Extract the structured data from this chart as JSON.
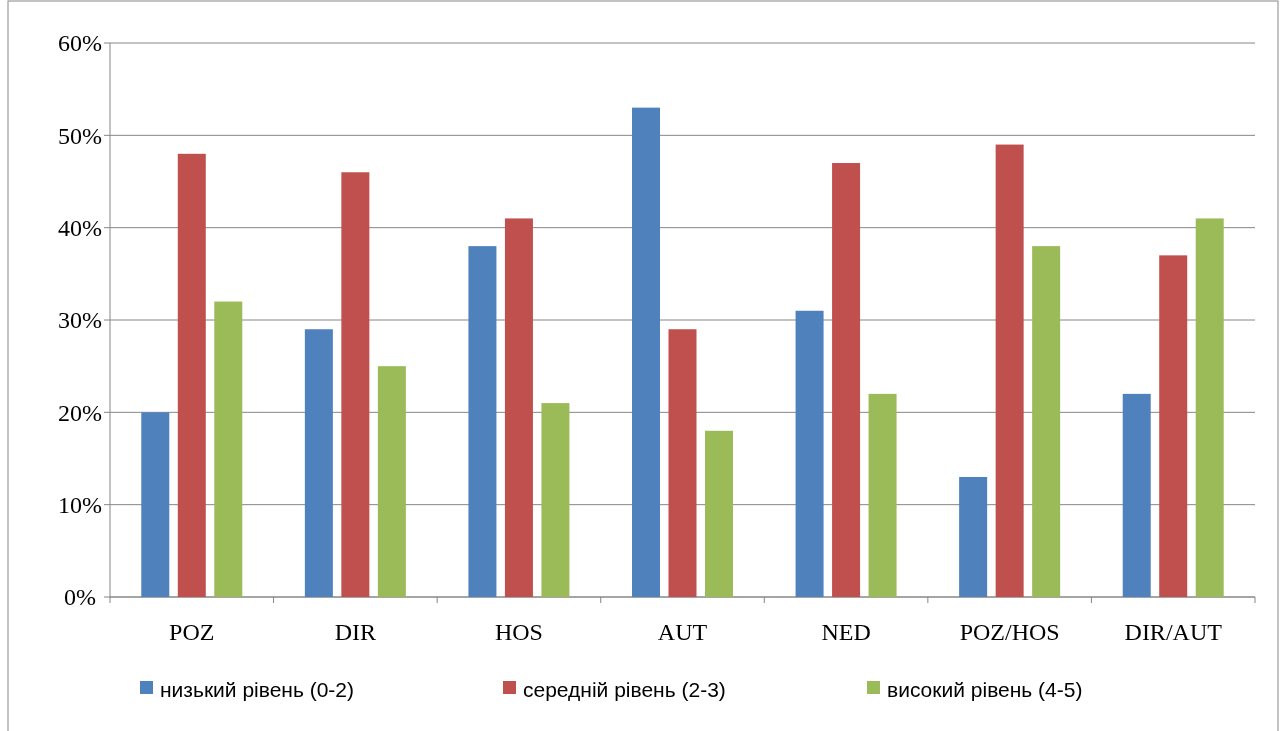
{
  "chart_data": {
    "type": "bar",
    "categories": [
      "POZ",
      "DIR",
      "HOS",
      "AUT",
      "NED",
      "POZ/HOS",
      "DIR/AUT"
    ],
    "series": [
      {
        "name": "низький рівень (0-2)",
        "color": "#4f81bd",
        "values": [
          20,
          29,
          38,
          53,
          31,
          13,
          22
        ]
      },
      {
        "name": "середній рівень (2-3)",
        "color": "#c0504d",
        "values": [
          48,
          46,
          41,
          29,
          47,
          49,
          37
        ]
      },
      {
        "name": "високий рівень (4-5)",
        "color": "#9bbb59",
        "values": [
          32,
          25,
          21,
          18,
          22,
          38,
          41
        ]
      }
    ],
    "ylim": [
      0,
      60
    ],
    "yticks": [
      {
        "value": 0,
        "label": "0%"
      },
      {
        "value": 10,
        "label": "10%"
      },
      {
        "value": 20,
        "label": "20%"
      },
      {
        "value": 30,
        "label": "30%"
      },
      {
        "value": 40,
        "label": "40%"
      },
      {
        "value": 50,
        "label": "50%"
      },
      {
        "value": 60,
        "label": "60%"
      }
    ],
    "grid": "y",
    "legend": "bottom"
  }
}
